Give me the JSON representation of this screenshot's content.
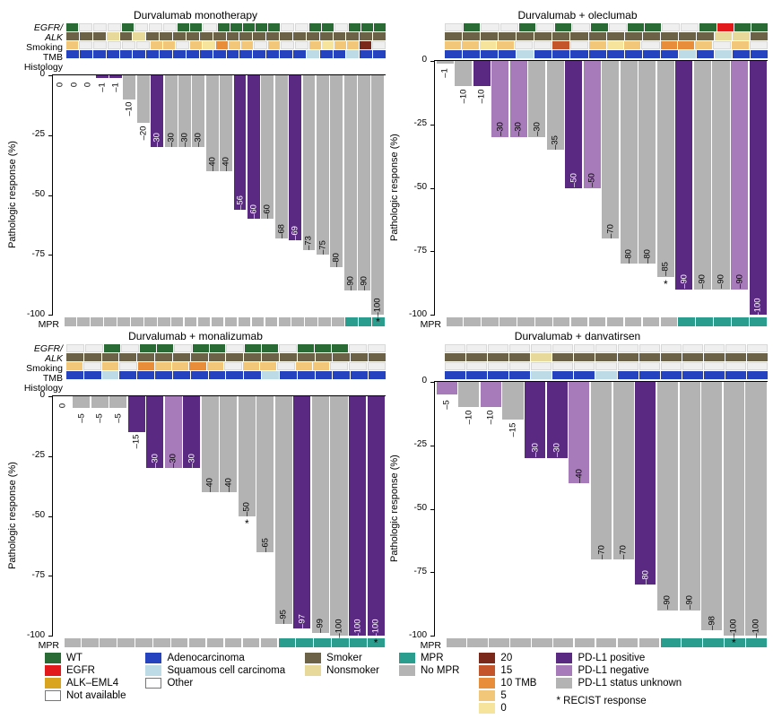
{
  "colors": {
    "wt": "#2a6b35",
    "egfr": "#e31a1c",
    "alk": "#d9a520",
    "na": "#ffffff",
    "adeno": "#2643bf",
    "squamous": "#bcdbe6",
    "other": "#ffffff",
    "smoker": "#6b6247",
    "nonsmoker": "#e6d99a",
    "mpr": "#2a9d8f",
    "nompr": "#b4b4b4",
    "pdl1_pos": "#5a2a82",
    "pdl1_neg": "#a77aba",
    "pdl1_unk": "#b3b3b3",
    "tmb0": "#f6e39c",
    "tmb5": "#f3c77a",
    "tmb10": "#e88e3b",
    "tmb15": "#c4542a",
    "tmb20": "#7a2819",
    "plot_border": "#000000",
    "bg": "#ffffff",
    "label_text": "#000000"
  },
  "y_axis": {
    "ticks": [
      0,
      -25,
      -50,
      -75,
      -100
    ],
    "label": "Pathologic response (%)",
    "min": -100,
    "max": 0
  },
  "heatmap_row_labels": [
    "EGFR/\nALK",
    "Smoking",
    "TMB",
    "Histology"
  ],
  "mpr_label": "MPR",
  "panels": [
    {
      "title": "Durvalumab monotherapy",
      "bars": [
        {
          "v": 0,
          "c": "pdl1_unk"
        },
        {
          "v": 0,
          "c": "pdl1_unk"
        },
        {
          "v": 0,
          "c": "pdl1_neg"
        },
        {
          "v": -1,
          "c": "pdl1_pos"
        },
        {
          "v": -1,
          "c": "pdl1_pos"
        },
        {
          "v": -10,
          "c": "pdl1_unk"
        },
        {
          "v": -20,
          "c": "pdl1_unk"
        },
        {
          "v": -30,
          "c": "pdl1_pos"
        },
        {
          "v": -30,
          "c": "pdl1_unk"
        },
        {
          "v": -30,
          "c": "pdl1_unk"
        },
        {
          "v": -30,
          "c": "pdl1_unk"
        },
        {
          "v": -40,
          "c": "pdl1_unk"
        },
        {
          "v": -40,
          "c": "pdl1_unk"
        },
        {
          "v": -56,
          "c": "pdl1_pos"
        },
        {
          "v": -60,
          "c": "pdl1_pos"
        },
        {
          "v": -60,
          "c": "pdl1_unk"
        },
        {
          "v": -68,
          "c": "pdl1_unk"
        },
        {
          "v": -69,
          "c": "pdl1_pos"
        },
        {
          "v": -73,
          "c": "pdl1_unk"
        },
        {
          "v": -75,
          "c": "pdl1_unk"
        },
        {
          "v": -80,
          "c": "pdl1_unk"
        },
        {
          "v": -90,
          "c": "pdl1_unk"
        },
        {
          "v": -90,
          "c": "pdl1_unk"
        },
        {
          "v": -100,
          "c": "pdl1_unk",
          "star": true
        }
      ],
      "heatmap": {
        "egfr": [
          "wt",
          "na",
          "na",
          "na",
          "wt",
          "na",
          "na",
          "na",
          "wt",
          "wt",
          "na",
          "wt",
          "wt",
          "wt",
          "wt",
          "wt",
          "na",
          "na",
          "wt",
          "wt",
          "na",
          "wt",
          "wt",
          "wt"
        ],
        "smoking": [
          "smoker",
          "smoker",
          "smoker",
          "nonsmoker",
          "smoker",
          "nonsmoker",
          "smoker",
          "smoker",
          "smoker",
          "smoker",
          "smoker",
          "smoker",
          "smoker",
          "smoker",
          "smoker",
          "smoker",
          "smoker",
          "smoker",
          "smoker",
          "smoker",
          "smoker",
          "smoker",
          "smoker",
          "smoker"
        ],
        "tmb": [
          "tmb5",
          "na",
          "na",
          "na",
          "na",
          "na",
          "tmb5",
          "tmb5",
          "na",
          "tmb5",
          "tmb0",
          "tmb10",
          "tmb5",
          "tmb5",
          "na",
          "tmb5",
          "na",
          "na",
          "tmb5",
          "tmb0",
          "tmb5",
          "tmb5",
          "tmb20",
          "na"
        ],
        "hist": [
          "adeno",
          "adeno",
          "adeno",
          "adeno",
          "adeno",
          "adeno",
          "adeno",
          "adeno",
          "adeno",
          "adeno",
          "adeno",
          "adeno",
          "adeno",
          "adeno",
          "adeno",
          "adeno",
          "adeno",
          "adeno",
          "squamous",
          "adeno",
          "adeno",
          "squamous",
          "adeno",
          "adeno"
        ]
      },
      "mpr": [
        "nompr",
        "nompr",
        "nompr",
        "nompr",
        "nompr",
        "nompr",
        "nompr",
        "nompr",
        "nompr",
        "nompr",
        "nompr",
        "nompr",
        "nompr",
        "nompr",
        "nompr",
        "nompr",
        "nompr",
        "nompr",
        "nompr",
        "nompr",
        "nompr",
        "mpr",
        "mpr",
        "mpr"
      ]
    },
    {
      "title": "Durvalumab + oleclumab",
      "bars": [
        {
          "v": -1,
          "c": "pdl1_unk"
        },
        {
          "v": -10,
          "c": "pdl1_unk"
        },
        {
          "v": -10,
          "c": "pdl1_pos"
        },
        {
          "v": -30,
          "c": "pdl1_neg"
        },
        {
          "v": -30,
          "c": "pdl1_neg"
        },
        {
          "v": -30,
          "c": "pdl1_unk"
        },
        {
          "v": -35,
          "c": "pdl1_unk"
        },
        {
          "v": -50,
          "c": "pdl1_pos"
        },
        {
          "v": -50,
          "c": "pdl1_neg"
        },
        {
          "v": -70,
          "c": "pdl1_unk"
        },
        {
          "v": -80,
          "c": "pdl1_unk"
        },
        {
          "v": -80,
          "c": "pdl1_unk"
        },
        {
          "v": -85,
          "c": "pdl1_unk",
          "star": true
        },
        {
          "v": -90,
          "c": "pdl1_pos"
        },
        {
          "v": -90,
          "c": "pdl1_unk"
        },
        {
          "v": -90,
          "c": "pdl1_unk"
        },
        {
          "v": -90,
          "c": "pdl1_neg"
        },
        {
          "v": -100,
          "c": "pdl1_pos"
        }
      ],
      "heatmap": {
        "egfr": [
          "na",
          "wt",
          "na",
          "na",
          "wt",
          "na",
          "wt",
          "na",
          "wt",
          "na",
          "wt",
          "wt",
          "na",
          "na",
          "wt",
          "egfr",
          "wt",
          "wt"
        ],
        "smoking": [
          "smoker",
          "smoker",
          "smoker",
          "smoker",
          "smoker",
          "smoker",
          "smoker",
          "smoker",
          "smoker",
          "smoker",
          "smoker",
          "smoker",
          "smoker",
          "smoker",
          "smoker",
          "nonsmoker",
          "nonsmoker",
          "smoker"
        ],
        "tmb": [
          "tmb5",
          "tmb5",
          "tmb0",
          "tmb5",
          "na",
          "na",
          "tmb15",
          "na",
          "tmb5",
          "tmb0",
          "tmb5",
          "na",
          "tmb10",
          "tmb10",
          "tmb5",
          "na",
          "tmb5",
          "na"
        ],
        "hist": [
          "adeno",
          "adeno",
          "adeno",
          "adeno",
          "squamous",
          "adeno",
          "adeno",
          "adeno",
          "adeno",
          "adeno",
          "adeno",
          "adeno",
          "adeno",
          "squamous",
          "adeno",
          "squamous",
          "adeno",
          "adeno"
        ]
      },
      "mpr": [
        "nompr",
        "nompr",
        "nompr",
        "nompr",
        "nompr",
        "nompr",
        "nompr",
        "nompr",
        "nompr",
        "nompr",
        "nompr",
        "nompr",
        "nompr",
        "mpr",
        "mpr",
        "mpr",
        "mpr",
        "mpr"
      ]
    },
    {
      "title": "Durvalumab + monalizumab",
      "bars": [
        {
          "v": 0,
          "c": "pdl1_unk"
        },
        {
          "v": -5,
          "c": "pdl1_unk"
        },
        {
          "v": -5,
          "c": "pdl1_unk"
        },
        {
          "v": -5,
          "c": "pdl1_unk"
        },
        {
          "v": -15,
          "c": "pdl1_pos"
        },
        {
          "v": -30,
          "c": "pdl1_pos"
        },
        {
          "v": -30,
          "c": "pdl1_neg"
        },
        {
          "v": -30,
          "c": "pdl1_pos"
        },
        {
          "v": -40,
          "c": "pdl1_unk"
        },
        {
          "v": -40,
          "c": "pdl1_unk"
        },
        {
          "v": -50,
          "c": "pdl1_unk",
          "star": true
        },
        {
          "v": -65,
          "c": "pdl1_unk"
        },
        {
          "v": -95,
          "c": "pdl1_unk"
        },
        {
          "v": -97,
          "c": "pdl1_pos"
        },
        {
          "v": -99,
          "c": "pdl1_unk"
        },
        {
          "v": -100,
          "c": "pdl1_unk"
        },
        {
          "v": -100,
          "c": "pdl1_pos"
        },
        {
          "v": -100,
          "c": "pdl1_pos",
          "star": true
        }
      ],
      "heatmap": {
        "egfr": [
          "na",
          "na",
          "wt",
          "na",
          "wt",
          "wt",
          "na",
          "wt",
          "wt",
          "na",
          "wt",
          "wt",
          "na",
          "wt",
          "wt",
          "wt",
          "na",
          "na"
        ],
        "smoking": [
          "smoker",
          "smoker",
          "smoker",
          "smoker",
          "smoker",
          "smoker",
          "smoker",
          "smoker",
          "smoker",
          "smoker",
          "smoker",
          "smoker",
          "smoker",
          "smoker",
          "smoker",
          "smoker",
          "smoker",
          "smoker"
        ],
        "tmb": [
          "tmb5",
          "na",
          "tmb5",
          "na",
          "tmb10",
          "tmb5",
          "tmb5",
          "tmb10",
          "tmb5",
          "na",
          "tmb5",
          "tmb5",
          "na",
          "tmb5",
          "tmb5",
          "na",
          "na",
          "na"
        ],
        "hist": [
          "adeno",
          "adeno",
          "squamous",
          "adeno",
          "adeno",
          "adeno",
          "adeno",
          "adeno",
          "adeno",
          "adeno",
          "adeno",
          "squamous",
          "adeno",
          "adeno",
          "adeno",
          "adeno",
          "adeno",
          "adeno"
        ]
      },
      "mpr": [
        "nompr",
        "nompr",
        "nompr",
        "nompr",
        "nompr",
        "nompr",
        "nompr",
        "nompr",
        "nompr",
        "nompr",
        "nompr",
        "nompr",
        "mpr",
        "mpr",
        "mpr",
        "mpr",
        "mpr",
        "mpr"
      ]
    },
    {
      "title": "Durvalumab + danvatirsen",
      "bars": [
        {
          "v": -5,
          "c": "pdl1_neg"
        },
        {
          "v": -10,
          "c": "pdl1_unk"
        },
        {
          "v": -10,
          "c": "pdl1_neg"
        },
        {
          "v": -15,
          "c": "pdl1_unk"
        },
        {
          "v": -30,
          "c": "pdl1_pos"
        },
        {
          "v": -30,
          "c": "pdl1_pos"
        },
        {
          "v": -40,
          "c": "pdl1_neg"
        },
        {
          "v": -70,
          "c": "pdl1_unk"
        },
        {
          "v": -70,
          "c": "pdl1_unk"
        },
        {
          "v": -80,
          "c": "pdl1_pos"
        },
        {
          "v": -90,
          "c": "pdl1_unk"
        },
        {
          "v": -90,
          "c": "pdl1_unk"
        },
        {
          "v": -98,
          "c": "pdl1_unk"
        },
        {
          "v": -100,
          "c": "pdl1_unk",
          "star": true
        },
        {
          "v": -100,
          "c": "pdl1_unk"
        }
      ],
      "heatmap": {
        "egfr": [
          "na",
          "na",
          "na",
          "na",
          "na",
          "na",
          "na",
          "na",
          "na",
          "na",
          "na",
          "na",
          "na",
          "na",
          "na"
        ],
        "smoking": [
          "smoker",
          "smoker",
          "smoker",
          "smoker",
          "nonsmoker",
          "smoker",
          "smoker",
          "smoker",
          "smoker",
          "smoker",
          "smoker",
          "smoker",
          "smoker",
          "smoker",
          "smoker"
        ],
        "tmb": [
          "na",
          "na",
          "na",
          "na",
          "na",
          "na",
          "na",
          "na",
          "na",
          "na",
          "na",
          "na",
          "na",
          "na",
          "na"
        ],
        "hist": [
          "adeno",
          "adeno",
          "adeno",
          "adeno",
          "squamous",
          "adeno",
          "adeno",
          "squamous",
          "adeno",
          "adeno",
          "adeno",
          "adeno",
          "adeno",
          "adeno",
          "adeno"
        ]
      },
      "mpr": [
        "nompr",
        "nompr",
        "nompr",
        "nompr",
        "nompr",
        "nompr",
        "nompr",
        "nompr",
        "nompr",
        "nompr",
        "mpr",
        "mpr",
        "mpr",
        "mpr",
        "mpr"
      ]
    }
  ],
  "legend_cols": [
    [
      {
        "sw": "wt",
        "lab": "WT"
      },
      {
        "sw": "egfr",
        "lab": "EGFR"
      },
      {
        "sw": "alk",
        "lab": "ALK–EML4"
      },
      {
        "sw": "na",
        "lab": "Not available",
        "border": true
      }
    ],
    [
      {
        "sw": "adeno",
        "lab": "Adenocarcinoma"
      },
      {
        "sw": "squamous",
        "lab": "Squamous cell carcinoma"
      },
      {
        "sw": "other",
        "lab": "Other",
        "border": true
      }
    ],
    [
      {
        "sw": "smoker",
        "lab": "Smoker"
      },
      {
        "sw": "nonsmoker",
        "lab": "Nonsmoker"
      }
    ],
    [
      {
        "sw": "mpr",
        "lab": "MPR"
      },
      {
        "sw": "nompr",
        "lab": "No MPR"
      }
    ],
    [
      {
        "sw": "tmb20",
        "lab": "20"
      },
      {
        "sw": "tmb15",
        "lab": "15"
      },
      {
        "sw": "tmb10",
        "lab": "10 TMB"
      },
      {
        "sw": "tmb5",
        "lab": "5"
      },
      {
        "sw": "tmb0",
        "lab": "0"
      }
    ],
    [
      {
        "sw": "pdl1_pos",
        "lab": "PD-L1 positive"
      },
      {
        "sw": "pdl1_neg",
        "lab": "PD-L1 negative"
      },
      {
        "sw": "pdl1_unk",
        "lab": "PD-L1 status unknown"
      },
      {
        "text_only": "* RECIST response"
      }
    ]
  ]
}
